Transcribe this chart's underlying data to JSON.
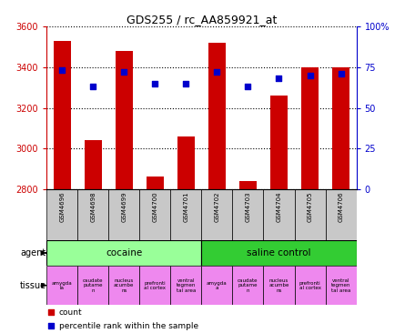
{
  "title": "GDS255 / rc_AA859921_at",
  "samples": [
    "GSM4696",
    "GSM4698",
    "GSM4699",
    "GSM4700",
    "GSM4701",
    "GSM4702",
    "GSM4703",
    "GSM4704",
    "GSM4705",
    "GSM4706"
  ],
  "counts": [
    3530,
    3040,
    3480,
    2860,
    3060,
    3520,
    2840,
    3260,
    3400,
    3400
  ],
  "percentiles": [
    73,
    63,
    72,
    65,
    65,
    72,
    63,
    68,
    70,
    71
  ],
  "ylim_left": [
    2800,
    3600
  ],
  "ylim_right": [
    0,
    100
  ],
  "yticks_left": [
    2800,
    3000,
    3200,
    3400,
    3600
  ],
  "yticks_right": [
    0,
    25,
    50,
    75,
    100
  ],
  "bar_color": "#cc0000",
  "dot_color": "#0000cc",
  "agent_cocaine_color": "#99ff99",
  "agent_saline_color": "#33cc33",
  "tissue_colors_light": "#ee88ee",
  "tissue_colors_dark": "#cc44cc",
  "legend_count_label": "count",
  "legend_pct_label": "percentile rank within the sample",
  "background_color": "#ffffff",
  "tick_label_color_left": "#cc0000",
  "tick_label_color_right": "#0000cc",
  "sample_label_bg": "#c8c8c8",
  "tissue_label_cocaine": [
    "amygda\nla",
    "caudate\nputame\nn",
    "nucleus\nacumbe\nns",
    "prefronti\nal cortex",
    "ventral\ntegmen\ntal area"
  ],
  "tissue_label_saline": [
    "amygda\na",
    "caudate\nputame\nn",
    "nucleus\nacumbe\nns",
    "prefronti\nal cortex",
    "ventral\ntegmen\ntal area"
  ],
  "tissue_color_cocaine": [
    "#ee88ee",
    "#ee88ee",
    "#ee88ee",
    "#ee88ee",
    "#ee88ee"
  ],
  "tissue_color_saline": [
    "#ee88ee",
    "#ee88ee",
    "#ee88ee",
    "#ee88ee",
    "#ee88ee"
  ]
}
